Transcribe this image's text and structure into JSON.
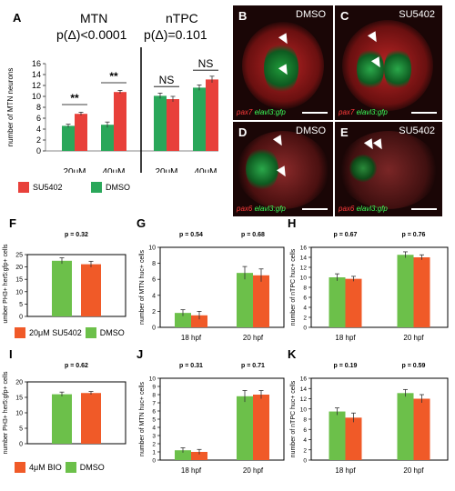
{
  "panel_labels": {
    "A": "A",
    "B": "B",
    "C": "C",
    "D": "D",
    "E": "E",
    "F": "F",
    "G": "G",
    "H": "H",
    "I": "I",
    "J": "J",
    "K": "K"
  },
  "colors": {
    "green": "#2aa75a",
    "red": "#e8403a",
    "greenLight": "#6cc04a",
    "redOrange": "#f05a28"
  },
  "panelA": {
    "title_left": "MTN",
    "p_left": "p(Δ)<0.0001",
    "title_right": "nTPC",
    "p_right": "p(Δ)=0.101",
    "sig": [
      "**",
      "**",
      "NS",
      "NS"
    ],
    "legend_su": "SU5402",
    "legend_dmso": "DMSO"
  },
  "micro": {
    "B": {
      "title": "DMSO",
      "cap_red": "pax7",
      "cap_green": "elavl3:gfp"
    },
    "C": {
      "title": "SU5402",
      "cap_red": "pax7",
      "cap_green": "elavl3:gfp"
    },
    "D": {
      "title": "DMSO",
      "cap_red": "pax6",
      "cap_green": "elavl3:gfp"
    },
    "E": {
      "title": "SU5402",
      "cap_red": "pax6",
      "cap_green": "elavl3:gfp"
    }
  },
  "legend_F": {
    "red": "20μM SU5402",
    "green": "DMSO"
  },
  "legend_I": {
    "red": "4μM BIO",
    "green": "DMSO"
  },
  "chart_data": [
    {
      "panel": "A",
      "type": "bar",
      "ylabel": "number of MTN neurons",
      "ylim": [
        0,
        16
      ],
      "yticks": [
        0,
        2,
        4,
        6,
        8,
        10,
        12,
        14,
        16
      ],
      "categories": [
        "20uM",
        "40uM",
        "20uM",
        "40uM"
      ],
      "series": [
        {
          "name": "DMSO",
          "values": [
            4.6,
            4.8,
            10.1,
            11.6
          ],
          "err": [
            0.3,
            0.5,
            0.5,
            0.5
          ]
        },
        {
          "name": "SU5402",
          "values": [
            6.8,
            10.8,
            9.5,
            13.1
          ],
          "err": [
            0.3,
            0.3,
            0.5,
            0.6
          ]
        }
      ]
    },
    {
      "panel": "F",
      "type": "bar",
      "ylabel": "number PH3+ her5:gfp+ cells",
      "ylim": [
        0,
        25
      ],
      "yticks": [
        0,
        5,
        10,
        15,
        20,
        25
      ],
      "pvalues": [
        "p = 0.32"
      ],
      "categories": [
        ""
      ],
      "series": [
        {
          "name": "DMSO",
          "values": [
            22.5
          ],
          "err": [
            1.2
          ]
        },
        {
          "name": "20μM SU5402",
          "values": [
            21.1
          ],
          "err": [
            1.2
          ]
        }
      ]
    },
    {
      "panel": "G",
      "type": "bar",
      "ylabel": "number of MTN huc+ cells",
      "ylim": [
        0,
        10
      ],
      "yticks": [
        0,
        2,
        4,
        6,
        8,
        10
      ],
      "pvalues": [
        "p = 0.54",
        "p = 0.68"
      ],
      "categories": [
        "18 hpf",
        "20 hpf"
      ],
      "series": [
        {
          "name": "DMSO",
          "values": [
            1.8,
            6.8
          ],
          "err": [
            0.4,
            0.8
          ]
        },
        {
          "name": "SU5402",
          "values": [
            1.5,
            6.5
          ],
          "err": [
            0.5,
            0.8
          ]
        }
      ]
    },
    {
      "panel": "H",
      "type": "bar",
      "ylabel": "number of nTPC huc+ cells",
      "ylim": [
        0,
        16
      ],
      "yticks": [
        0,
        2,
        4,
        6,
        8,
        10,
        12,
        14,
        16
      ],
      "pvalues": [
        "p = 0.67",
        "p = 0.76"
      ],
      "categories": [
        "18 hpf",
        "20 hpf"
      ],
      "series": [
        {
          "name": "DMSO",
          "values": [
            10,
            14.5
          ],
          "err": [
            0.7,
            0.6
          ]
        },
        {
          "name": "SU5402",
          "values": [
            9.7,
            14
          ],
          "err": [
            0.5,
            0.5
          ]
        }
      ]
    },
    {
      "panel": "I",
      "type": "bar",
      "ylabel": "number PH3+ her5:gfp+ cells",
      "ylim": [
        0,
        20
      ],
      "yticks": [
        0,
        5,
        10,
        15,
        20
      ],
      "pvalues": [
        "p = 0.62"
      ],
      "categories": [
        ""
      ],
      "series": [
        {
          "name": "DMSO",
          "values": [
            16
          ],
          "err": [
            0.7
          ]
        },
        {
          "name": "4μM BIO",
          "values": [
            16.4
          ],
          "err": [
            0.5
          ]
        }
      ]
    },
    {
      "panel": "J",
      "type": "bar",
      "ylabel": "number of MTN huc+ cells",
      "ylim": [
        0,
        10
      ],
      "yticks": [
        0,
        1,
        2,
        3,
        4,
        5,
        6,
        7,
        8,
        9,
        10
      ],
      "pvalues": [
        "p = 0.31",
        "p = 0.71"
      ],
      "categories": [
        "18 hpf",
        "20 hpf"
      ],
      "series": [
        {
          "name": "DMSO",
          "values": [
            1.2,
            7.8
          ],
          "err": [
            0.3,
            0.7
          ]
        },
        {
          "name": "BIO",
          "values": [
            1.0,
            8.0
          ],
          "err": [
            0.3,
            0.5
          ]
        }
      ]
    },
    {
      "panel": "K",
      "type": "bar",
      "ylabel": "number of nTPC huc+ cells",
      "ylim": [
        0,
        16
      ],
      "yticks": [
        0,
        2,
        4,
        6,
        8,
        10,
        12,
        14,
        16
      ],
      "pvalues": [
        "p = 0.19",
        "p = 0.59"
      ],
      "categories": [
        "18 hpf",
        "20 hpf"
      ],
      "series": [
        {
          "name": "DMSO",
          "values": [
            9.5,
            13.1
          ],
          "err": [
            0.7,
            0.7
          ]
        },
        {
          "name": "BIO",
          "values": [
            8.3,
            12
          ],
          "err": [
            0.9,
            0.8
          ]
        }
      ]
    }
  ]
}
